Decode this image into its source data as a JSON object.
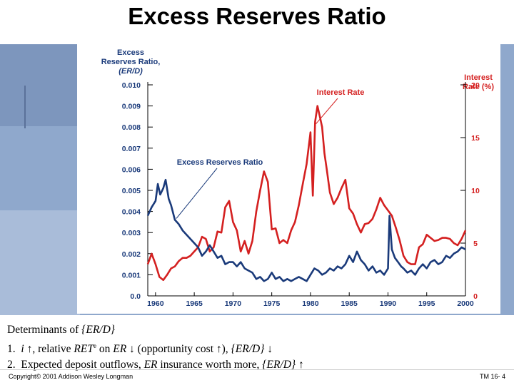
{
  "slide": {
    "title": "Excess Reserves Ratio",
    "copyright": "Copyright© 2001 Addison Wesley Longman",
    "slide_number": "TM 16- 4"
  },
  "notes": {
    "heading_prefix": "Determinants of ",
    "heading_var": "{ER/D}",
    "line1": {
      "num": "1.",
      "i": "i",
      "arrow_up": "↑",
      "text_a": ", relative ",
      "ret": "RET",
      "sup": "e",
      "text_b": " on ",
      "er": "ER",
      "arrow_down": "↓",
      "text_c": " (opportunity cost ",
      "arrow_up2": "↑",
      "text_d": "), ",
      "erd": "{ER/D}",
      "arrow_down2": "↓"
    },
    "line2": {
      "num": "2.",
      "text_a": "Expected deposit outflows, ",
      "er": "ER",
      "text_b": " insurance worth more, ",
      "erd": "{ER/D}",
      "arrow_up": "↑"
    }
  },
  "colors": {
    "excess_reserves": "#1a3a7a",
    "interest_rate": "#d42020",
    "label_red": "#d42020",
    "axis_label_blue": "#1a3a7a",
    "annotation_text": "#1a3a7a",
    "panel_bg": "#ffffff"
  },
  "chart_data": {
    "type": "line",
    "left_axis_label": [
      "Excess",
      "Reserves Ratio,",
      "(ER/D)"
    ],
    "right_axis_label": [
      "Interest",
      "Rate (%)"
    ],
    "x_ticks": [
      "1960",
      "1965",
      "1970",
      "1975",
      "1980",
      "1985",
      "1990",
      "1995",
      "2000"
    ],
    "y_left_ticks": [
      "0.010",
      "0.009",
      "0.008",
      "0.007",
      "0.006",
      "0.005",
      "0.004",
      "0.003",
      "0.002",
      "0.001",
      "0.0"
    ],
    "y_right_ticks": [
      "20",
      "15",
      "10",
      "5",
      "0"
    ],
    "xlim": [
      1959,
      2000
    ],
    "ylim_left": [
      0,
      0.01
    ],
    "ylim_right": [
      0,
      20
    ],
    "grid": false,
    "annotations": [
      {
        "text": "Interest Rate",
        "series": "Interest Rate",
        "point_x": 1980.6,
        "point_y_right": 16.5
      },
      {
        "text": "Excess Reserves Ratio",
        "series": "Excess Reserves Ratio",
        "point_x": 1962.5,
        "point_y_left": 0.0036
      }
    ],
    "series": [
      {
        "name": "Interest Rate",
        "axis": "right",
        "x": [
          1959.0,
          1959.5,
          1960.0,
          1960.5,
          1961.0,
          1961.5,
          1962.0,
          1962.5,
          1963.0,
          1963.5,
          1964.0,
          1964.5,
          1965.0,
          1965.5,
          1966.0,
          1966.5,
          1967.0,
          1967.5,
          1968.0,
          1968.5,
          1969.0,
          1969.5,
          1970.0,
          1970.5,
          1971.0,
          1971.5,
          1972.0,
          1972.5,
          1973.0,
          1973.5,
          1974.0,
          1974.5,
          1975.0,
          1975.5,
          1976.0,
          1976.5,
          1977.0,
          1977.5,
          1978.0,
          1978.5,
          1979.0,
          1979.5,
          1980.0,
          1980.3,
          1980.6,
          1980.9,
          1981.2,
          1981.5,
          1981.8,
          1982.1,
          1982.5,
          1983.0,
          1983.5,
          1984.0,
          1984.5,
          1985.0,
          1985.5,
          1986.0,
          1986.5,
          1987.0,
          1987.5,
          1988.0,
          1988.5,
          1989.0,
          1989.5,
          1990.0,
          1990.5,
          1991.0,
          1991.5,
          1992.0,
          1992.5,
          1993.0,
          1993.5,
          1994.0,
          1994.5,
          1995.0,
          1995.5,
          1996.0,
          1996.5,
          1997.0,
          1997.5,
          1998.0,
          1998.5,
          1999.0,
          1999.5,
          2000.0
        ],
        "values": [
          3.0,
          4.0,
          3.0,
          1.8,
          1.5,
          2.0,
          2.6,
          2.8,
          3.3,
          3.6,
          3.6,
          3.8,
          4.2,
          4.6,
          5.6,
          5.4,
          4.2,
          4.6,
          6.1,
          6.0,
          8.4,
          9.0,
          7.0,
          6.2,
          4.2,
          5.2,
          4.0,
          5.2,
          8.0,
          10.0,
          11.8,
          10.8,
          6.3,
          6.4,
          5.0,
          5.3,
          5.0,
          6.2,
          7.0,
          8.6,
          10.6,
          12.5,
          15.5,
          9.5,
          16.5,
          18.0,
          17.0,
          16.0,
          13.5,
          12.0,
          9.8,
          8.7,
          9.3,
          10.2,
          11.0,
          8.3,
          7.8,
          6.8,
          6.0,
          6.8,
          6.9,
          7.3,
          8.2,
          9.3,
          8.6,
          8.1,
          7.6,
          6.5,
          5.3,
          3.8,
          3.2,
          3.0,
          3.0,
          4.6,
          4.9,
          5.8,
          5.5,
          5.2,
          5.3,
          5.5,
          5.5,
          5.4,
          5.0,
          4.8,
          5.4,
          6.2
        ]
      },
      {
        "name": "Excess Reserves Ratio",
        "axis": "left",
        "x": [
          1959.0,
          1959.5,
          1960.0,
          1960.3,
          1960.6,
          1961.0,
          1961.3,
          1961.7,
          1962.0,
          1962.5,
          1963.0,
          1963.5,
          1964.0,
          1964.5,
          1965.0,
          1965.5,
          1966.0,
          1966.5,
          1967.0,
          1967.5,
          1968.0,
          1968.5,
          1969.0,
          1969.5,
          1970.0,
          1970.5,
          1971.0,
          1971.5,
          1972.0,
          1972.5,
          1973.0,
          1973.5,
          1974.0,
          1974.5,
          1975.0,
          1975.5,
          1976.0,
          1976.5,
          1977.0,
          1977.5,
          1978.0,
          1978.5,
          1979.0,
          1979.5,
          1980.0,
          1980.5,
          1981.0,
          1981.5,
          1982.0,
          1982.5,
          1983.0,
          1983.5,
          1984.0,
          1984.5,
          1985.0,
          1985.5,
          1986.0,
          1986.5,
          1987.0,
          1987.5,
          1988.0,
          1988.5,
          1989.0,
          1989.5,
          1990.0,
          1990.2,
          1990.5,
          1990.9,
          1991.3,
          1991.7,
          1992.0,
          1992.5,
          1993.0,
          1993.5,
          1994.0,
          1994.5,
          1995.0,
          1995.5,
          1996.0,
          1996.5,
          1997.0,
          1997.5,
          1998.0,
          1998.5,
          1999.0,
          1999.5,
          2000.0
        ],
        "values": [
          0.0038,
          0.0042,
          0.0045,
          0.0053,
          0.0048,
          0.0051,
          0.0055,
          0.0046,
          0.0043,
          0.0036,
          0.0034,
          0.0031,
          0.0029,
          0.0027,
          0.0025,
          0.0023,
          0.0019,
          0.0021,
          0.0024,
          0.0021,
          0.0018,
          0.0019,
          0.0015,
          0.0016,
          0.0016,
          0.0014,
          0.0016,
          0.0013,
          0.0012,
          0.0011,
          0.0008,
          0.0009,
          0.0007,
          0.0008,
          0.0011,
          0.0008,
          0.0009,
          0.0007,
          0.0008,
          0.0007,
          0.0008,
          0.0009,
          0.0008,
          0.0007,
          0.001,
          0.0013,
          0.0012,
          0.001,
          0.0011,
          0.0013,
          0.0012,
          0.0014,
          0.0013,
          0.0015,
          0.0019,
          0.0016,
          0.0021,
          0.0017,
          0.0015,
          0.0012,
          0.0014,
          0.0011,
          0.0012,
          0.001,
          0.0013,
          0.0038,
          0.0022,
          0.0018,
          0.0016,
          0.0014,
          0.0013,
          0.0011,
          0.0012,
          0.001,
          0.0013,
          0.0015,
          0.0013,
          0.0016,
          0.0017,
          0.0015,
          0.0016,
          0.0019,
          0.0018,
          0.002,
          0.0021,
          0.0023,
          0.0022
        ]
      }
    ]
  }
}
